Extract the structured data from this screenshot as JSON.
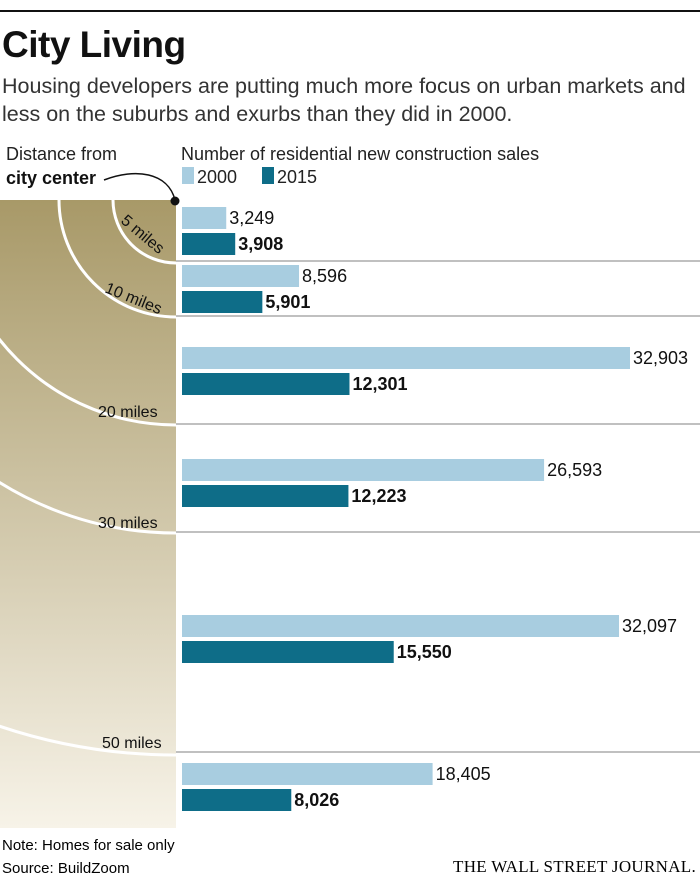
{
  "title": "City Living",
  "subtitle": "Housing developers are putting much more focus on urban markets and less on the suburbs and exurbs than they did in 2000.",
  "distance_label_line1": "Distance from",
  "distance_label_line2": "city center",
  "ring_labels": [
    "5 miles",
    "10 miles",
    "20 miles",
    "30 miles",
    "50 miles"
  ],
  "note": "Note: Homes for sale only",
  "source": "Source: BuildZoom",
  "publisher": "THE WALL STREET JOURNAL.",
  "colors": {
    "series_2000": "#a8cde0",
    "series_2015": "#0e6d88",
    "gradient_top": "#a89968",
    "gradient_bottom": "#f7f3e8"
  },
  "chart_data": {
    "type": "bar",
    "orientation": "horizontal",
    "title": "Number of residential new construction sales",
    "categories": [
      "",
      "",
      "",
      "",
      "",
      ""
    ],
    "series": [
      {
        "name": "2000",
        "values": [
          3249,
          8596,
          32903,
          26593,
          32097,
          18405
        ],
        "labels": [
          "3,249",
          "8,596",
          "32,903",
          "26,593",
          "32,097",
          "18,405"
        ]
      },
      {
        "name": "2015",
        "values": [
          3908,
          5901,
          12301,
          12223,
          15550,
          8026
        ],
        "labels": [
          "3,908",
          "5,901",
          "12,301",
          "12,223",
          "15,550",
          "8,026"
        ]
      }
    ],
    "xlim": [
      0,
      40000
    ],
    "legend_position": "top-left",
    "grid": false
  }
}
